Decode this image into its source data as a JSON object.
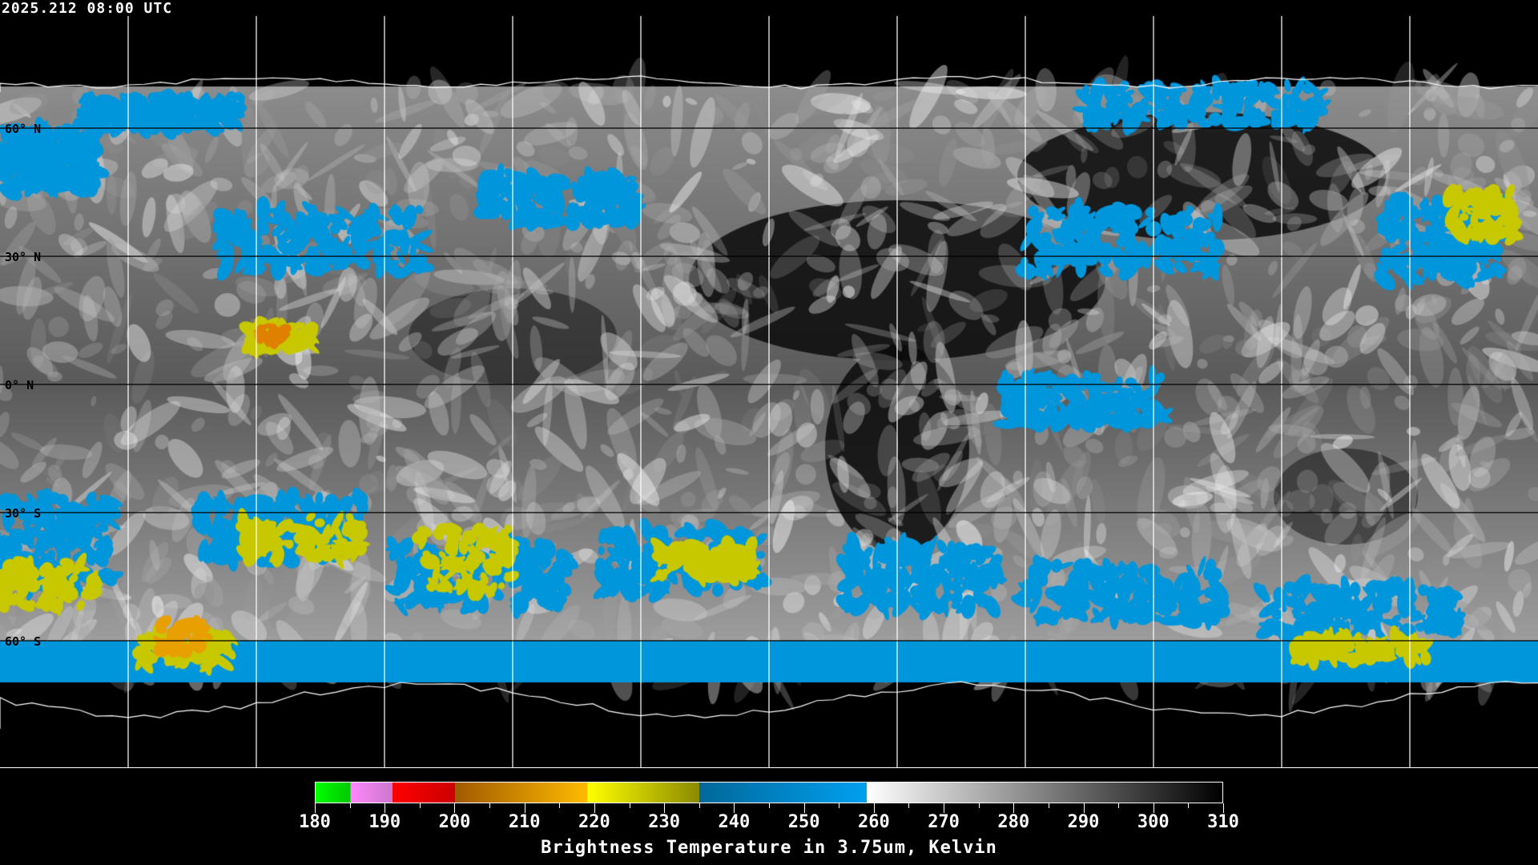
{
  "header": {
    "title": "2025.212 08:00 UTC"
  },
  "map": {
    "projection": "equirectangular",
    "lat_labels": [
      "60° N",
      "30° N",
      "0° N",
      "30° S",
      "60° S"
    ],
    "lat_values": [
      60,
      30,
      0,
      -30,
      -60
    ],
    "grid_spacing_deg": {
      "lon": 30,
      "lat": 30
    }
  },
  "colorbar": {
    "title": "Brightness Temperature in 3.75um, Kelvin",
    "range": [
      180,
      310
    ],
    "tick_labels": [
      "180",
      "190",
      "200",
      "210",
      "220",
      "230",
      "240",
      "250",
      "260",
      "270",
      "280",
      "290",
      "300",
      "310"
    ],
    "segments": [
      {
        "from": 180,
        "to": 185,
        "c1": "#00ff00",
        "c2": "#00c800"
      },
      {
        "from": 185,
        "to": 191,
        "c1": "#ff88ff",
        "c2": "#cc77cc"
      },
      {
        "from": 191,
        "to": 200,
        "c1": "#ff0000",
        "c2": "#cc0000"
      },
      {
        "from": 200,
        "to": 219,
        "c1": "#a05a00",
        "c2": "#ffbb00"
      },
      {
        "from": 219,
        "to": 235,
        "c1": "#ffff00",
        "c2": "#8a8a00"
      },
      {
        "from": 235,
        "to": 259,
        "c1": "#00689a",
        "c2": "#00a0f0"
      },
      {
        "from": 259,
        "to": 310,
        "c1": "#ffffff",
        "c2": "#000000"
      }
    ]
  }
}
